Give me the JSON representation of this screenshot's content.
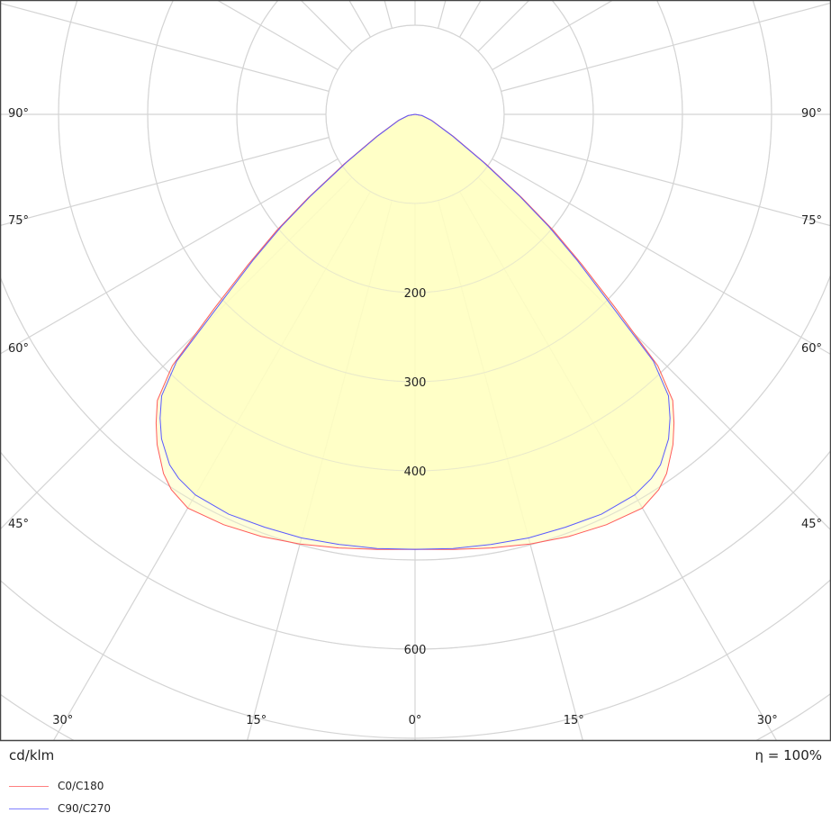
{
  "chart_data": {
    "type": "polar",
    "unit_label": "cd/klm",
    "efficiency_label": "η = 100%",
    "radial_range": [
      0,
      900
    ],
    "radial_grid_step": 100,
    "radial_tick_labels": [
      "200",
      "300",
      "400",
      "600"
    ],
    "radial_tick_values": [
      200,
      300,
      400,
      600
    ],
    "angle_grid_step_deg": 15,
    "angle_labels_left": [
      {
        "text": "90°",
        "angle": 90
      },
      {
        "text": "75°",
        "angle": 75
      },
      {
        "text": "60°",
        "angle": 60
      },
      {
        "text": "45°",
        "angle": 45
      }
    ],
    "angle_labels_right": [
      {
        "text": "90°",
        "angle": 90
      },
      {
        "text": "75°",
        "angle": 75
      },
      {
        "text": "60°",
        "angle": 60
      },
      {
        "text": "45°",
        "angle": 45
      }
    ],
    "angle_labels_bottom": [
      {
        "text": "30°",
        "angle": -30
      },
      {
        "text": "15°",
        "angle": -15
      },
      {
        "text": "0°",
        "angle": 0
      },
      {
        "text": "15°",
        "angle": 15
      },
      {
        "text": "30°",
        "angle": 30
      }
    ],
    "gamma_deg": [
      0,
      5,
      10,
      15,
      20,
      25,
      30,
      33,
      35,
      38,
      40,
      42,
      44,
      46,
      48,
      50,
      52,
      55,
      60,
      70,
      80,
      90
    ],
    "series": [
      {
        "name": "C0/C180",
        "color": "#ff5a5a",
        "values": [
          488,
          490,
          494,
          499,
          504,
          508,
          510,
          502,
          492,
          470,
          452,
          432,
          392,
          312,
          252,
          202,
          152,
          97,
          50,
          20,
          8,
          0
        ]
      },
      {
        "name": "C90/C270",
        "color": "#5a5aff",
        "values": [
          488,
          489,
          490,
          492,
          493,
          495,
          493,
          487,
          480,
          462,
          445,
          425,
          385,
          300,
          245,
          196,
          148,
          94,
          48,
          19,
          8,
          0
        ]
      }
    ],
    "fill_color": "#ffffc0",
    "grid_color": "#d4d4d4"
  }
}
